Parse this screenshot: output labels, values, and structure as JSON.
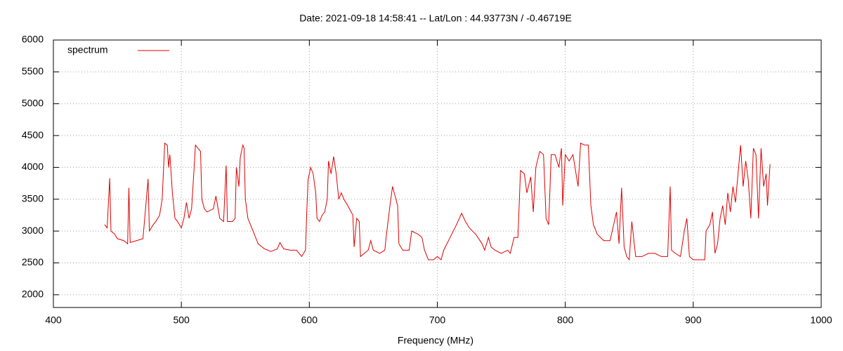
{
  "chart_data": {
    "type": "line",
    "title": "Date: 2021-09-18 14:58:41  --  Lat/Lon : 44.93773N / -0.46719E",
    "x_label": "Frequency (MHz)",
    "xlim": [
      400,
      1000
    ],
    "xticks": [
      400,
      500,
      600,
      700,
      800,
      900,
      1000
    ],
    "ylim": [
      1800,
      6000
    ],
    "yticks": [
      2000,
      2500,
      3000,
      3500,
      4000,
      4500,
      5000,
      5500,
      6000
    ],
    "grid": true,
    "legend": "top-left",
    "series": [
      {
        "name": "spectrum",
        "color": "#e00000",
        "x": [
          440,
          442,
          444,
          445,
          448,
          450,
          455,
          458,
          459,
          460,
          465,
          470,
          474,
          475,
          478,
          480,
          483,
          485,
          487,
          489,
          490,
          491,
          493,
          495,
          497,
          500,
          502,
          504,
          506,
          508,
          510,
          511,
          513,
          515,
          516,
          518,
          520,
          525,
          527,
          530,
          533,
          535,
          536,
          540,
          542,
          543,
          545,
          546,
          548,
          549,
          550,
          552,
          555,
          558,
          560,
          565,
          570,
          575,
          577,
          580,
          585,
          590,
          594,
          597,
          598,
          599,
          601,
          603,
          605,
          606,
          608,
          610,
          612,
          614,
          615,
          617,
          619,
          621,
          623,
          625,
          627,
          630,
          634,
          635,
          637,
          639,
          640,
          643,
          646,
          648,
          650,
          655,
          659,
          660,
          663,
          665,
          667,
          669,
          670,
          673,
          678,
          680,
          685,
          688,
          690,
          693,
          697,
          700,
          703,
          705,
          710,
          715,
          719,
          722,
          725,
          730,
          735,
          737,
          740,
          742,
          745,
          750,
          755,
          757,
          760,
          763,
          765,
          768,
          770,
          773,
          775,
          777,
          780,
          783,
          785,
          787,
          789,
          792,
          795,
          797,
          798,
          800,
          803,
          806,
          810,
          812,
          815,
          818,
          820,
          822,
          825,
          830,
          835,
          840,
          842,
          844,
          846,
          848,
          850,
          852,
          855,
          860,
          865,
          870,
          875,
          880,
          882,
          883,
          886,
          890,
          893,
          895,
          897,
          900,
          905,
          909,
          910,
          913,
          915,
          917,
          919,
          921,
          923,
          925,
          927,
          929,
          931,
          933,
          935,
          937,
          939,
          941,
          943,
          945,
          947,
          949,
          951,
          953,
          955,
          957,
          958,
          960
        ],
        "values": [
          3100,
          3050,
          3830,
          3000,
          2950,
          2880,
          2850,
          2800,
          3680,
          2820,
          2850,
          2880,
          3820,
          3000,
          3100,
          3150,
          3250,
          3500,
          4380,
          4350,
          4000,
          4200,
          3600,
          3200,
          3150,
          3050,
          3200,
          3450,
          3200,
          3350,
          4000,
          4350,
          4300,
          4250,
          3500,
          3350,
          3300,
          3350,
          3550,
          3200,
          3150,
          4030,
          3150,
          3150,
          3200,
          4000,
          3700,
          4150,
          4350,
          4300,
          3500,
          3200,
          3050,
          2900,
          2800,
          2720,
          2680,
          2720,
          2820,
          2720,
          2700,
          2700,
          2600,
          2700,
          3300,
          3800,
          4000,
          3900,
          3600,
          3200,
          3150,
          3250,
          3300,
          3500,
          4100,
          3900,
          4170,
          3900,
          3500,
          3600,
          3500,
          3400,
          3250,
          2750,
          3200,
          3150,
          2600,
          2650,
          2700,
          2850,
          2700,
          2650,
          2700,
          2900,
          3400,
          3700,
          3550,
          3400,
          2800,
          2700,
          2700,
          3000,
          2950,
          2900,
          2700,
          2550,
          2550,
          2600,
          2550,
          2700,
          2900,
          3100,
          3280,
          3150,
          3050,
          2950,
          2800,
          2700,
          2900,
          2750,
          2700,
          2650,
          2700,
          2650,
          2900,
          2900,
          3950,
          3900,
          3600,
          3850,
          3300,
          4000,
          4250,
          4200,
          3200,
          3100,
          4200,
          4200,
          4000,
          4300,
          3400,
          4200,
          4100,
          4200,
          3700,
          4380,
          4350,
          4350,
          3400,
          3100,
          2950,
          2850,
          2850,
          3300,
          2800,
          3680,
          2750,
          2600,
          2550,
          3150,
          2600,
          2600,
          2650,
          2650,
          2600,
          2600,
          3700,
          2700,
          2650,
          2600,
          3000,
          3200,
          2600,
          2550,
          2550,
          2550,
          3000,
          3100,
          3300,
          2650,
          2800,
          3200,
          3400,
          3100,
          3600,
          3300,
          3700,
          3450,
          3900,
          4350,
          3700,
          4100,
          3800,
          3200,
          4300,
          4200,
          3200,
          4300,
          3700,
          3900,
          3400,
          4050
        ]
      }
    ]
  }
}
